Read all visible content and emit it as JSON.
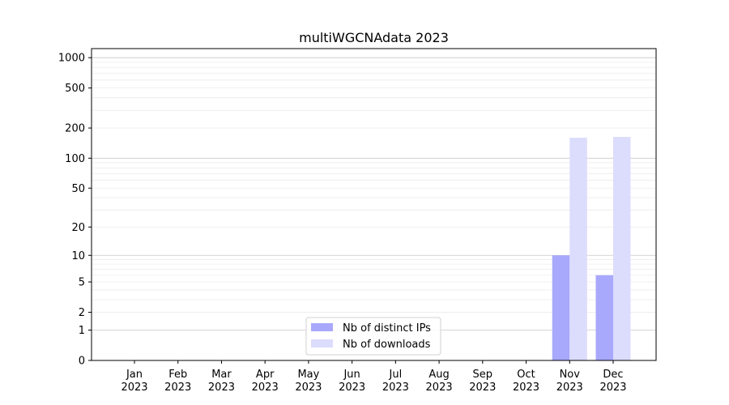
{
  "chart_data": {
    "type": "bar",
    "title": "multiWGCNAdata 2023",
    "xlabel": "",
    "ylabel": "",
    "yscale": "symlog (log10(1+y))",
    "ylim": [
      0,
      1230
    ],
    "yticks": [
      0,
      1,
      2,
      5,
      10,
      20,
      50,
      100,
      200,
      500,
      1000
    ],
    "categories": [
      "Jan\n2023",
      "Feb\n2023",
      "Mar\n2023",
      "Apr\n2023",
      "May\n2023",
      "Jun\n2023",
      "Jul\n2023",
      "Aug\n2023",
      "Sep\n2023",
      "Oct\n2023",
      "Nov\n2023",
      "Dec\n2023"
    ],
    "series": [
      {
        "name": "Nb of distinct IPs",
        "color": "#a8a8fc",
        "values": [
          0,
          0,
          0,
          0,
          0,
          0,
          0,
          0,
          0,
          0,
          10,
          6
        ]
      },
      {
        "name": "Nb of downloads",
        "color": "#dcdcfc",
        "values": [
          0,
          0,
          0,
          0,
          0,
          0,
          0,
          0,
          0,
          0,
          160,
          163
        ]
      }
    ],
    "grid": true,
    "legend": "bottom-center"
  }
}
